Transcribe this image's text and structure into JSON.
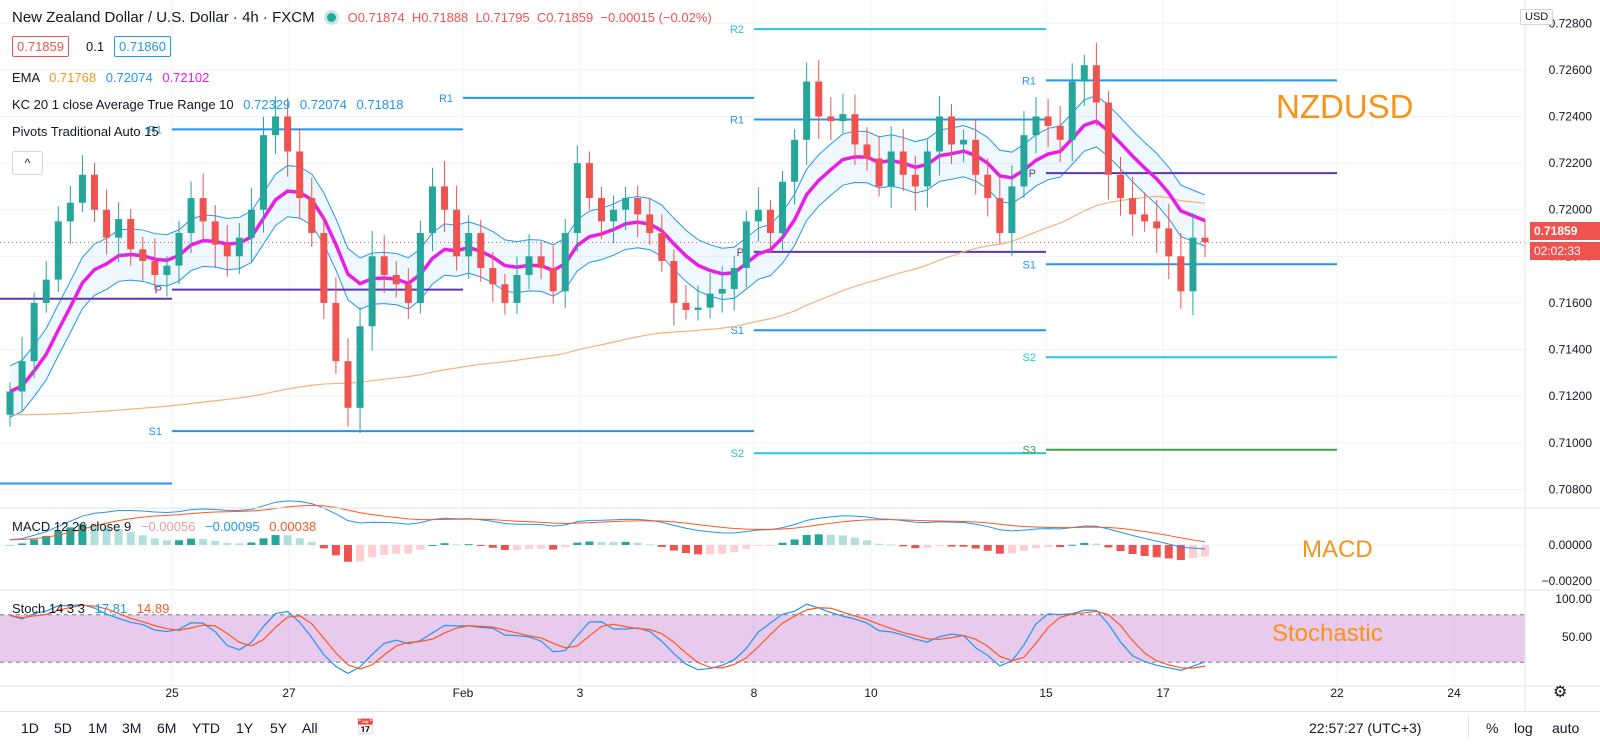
{
  "header": {
    "symbol_title": "New Zealand Dollar / U.S. Dollar · 4h · FXCM",
    "ohlc": {
      "open": "O0.71874",
      "high": "H0.71888",
      "low": "L0.71795",
      "close": "C0.71859",
      "change": "−0.00015 (−0.02%)"
    },
    "sell_price": "0.71859",
    "spread": "0.1",
    "buy_price": "0.71860",
    "currency": "USD"
  },
  "indicators": {
    "ema": {
      "label": "EMA",
      "v1": "0.71768",
      "v2": "0.72074",
      "v3": "0.72102",
      "c1": "#f7931a",
      "c2": "#2196f3",
      "c3": "#e91ee6"
    },
    "kc": {
      "label": "KC 20 1 close Average True Range 10",
      "v1": "0.72329",
      "v2": "0.72074",
      "v3": "0.71818"
    },
    "pivots": {
      "label": "Pivots Traditional Auto 15"
    },
    "collapse_icon": "^",
    "macd": {
      "label": "MACD 12 26 close 9",
      "v1": "−0.00056",
      "v2": "−0.00095",
      "v3": "0.00038"
    },
    "stoch": {
      "label": "Stoch 14 3 3",
      "v1": "17.81",
      "v2": "14.89"
    }
  },
  "annotations": {
    "main": "NZDUSD",
    "macd": "MACD",
    "stoch": "Stochastic"
  },
  "price_axis": {
    "current_price": "0.71859",
    "countdown": "02:02:33"
  },
  "bottom_bar": {
    "timeframes": [
      "1D",
      "5D",
      "1M",
      "3M",
      "6M",
      "YTD",
      "1Y",
      "5Y",
      "All"
    ],
    "clock": "22:57:27 (UTC+3)",
    "percent": "%",
    "log": "log",
    "auto": "auto"
  },
  "colors": {
    "up": "#26a69a",
    "down": "#ef5350",
    "ema_fast": "#e91ee6",
    "ema_slow": "#f7b07a",
    "kc_band": "#2196f3",
    "pivot_blue": "#2196f3",
    "pivot_purple": "#5e35b1",
    "pivot_teal": "#26c6da",
    "pivot_green": "#43a047",
    "stoch_k": "#2196f3",
    "stoch_d": "#ff5722",
    "stoch_bg": "#e1bee7",
    "accent_label": "#f7931a"
  },
  "chart_data": {
    "type": "candlestick",
    "timeframe": "4h",
    "x_ticks": [
      "25",
      "27",
      "Feb",
      "3",
      "8",
      "10",
      "15",
      "17",
      "22",
      "24"
    ],
    "y_ticks": [
      "0.72800",
      "0.72600",
      "0.72400",
      "0.72200",
      "0.72000",
      "0.71800",
      "0.71600",
      "0.71400",
      "0.71200",
      "0.71000",
      "0.70800"
    ],
    "ylim": [
      0.7072,
      0.729
    ],
    "close_series": [
      0.7122,
      0.7135,
      0.716,
      0.717,
      0.7195,
      0.7203,
      0.7215,
      0.72,
      0.7188,
      0.7196,
      0.7183,
      0.7178,
      0.7172,
      0.7176,
      0.719,
      0.7205,
      0.7195,
      0.7185,
      0.718,
      0.7188,
      0.72,
      0.7232,
      0.724,
      0.7225,
      0.7205,
      0.719,
      0.716,
      0.7135,
      0.7115,
      0.715,
      0.718,
      0.7172,
      0.7168,
      0.716,
      0.719,
      0.721,
      0.72,
      0.718,
      0.719,
      0.7175,
      0.7168,
      0.716,
      0.7172,
      0.718,
      0.7175,
      0.7165,
      0.719,
      0.722,
      0.7205,
      0.7195,
      0.72,
      0.7205,
      0.7198,
      0.719,
      0.7178,
      0.716,
      0.7157,
      0.7158,
      0.7164,
      0.7166,
      0.7175,
      0.7195,
      0.72,
      0.719,
      0.7212,
      0.723,
      0.7255,
      0.724,
      0.7238,
      0.7241,
      0.7228,
      0.7222,
      0.721,
      0.7225,
      0.7215,
      0.721,
      0.7225,
      0.724,
      0.7228,
      0.723,
      0.7215,
      0.7205,
      0.719,
      0.721,
      0.7232,
      0.724,
      0.7236,
      0.723,
      0.7255,
      0.7262,
      0.7246,
      0.7215,
      0.7205,
      0.7198,
      0.7195,
      0.7192,
      0.718,
      0.7165,
      0.7188,
      0.7186
    ],
    "pivots": [
      {
        "label": "R1",
        "value": 0.7248
      },
      {
        "label": "R1",
        "value": 0.72345
      },
      {
        "label": "R1",
        "value": 0.72555
      },
      {
        "label": "R1",
        "value": 0.72387
      },
      {
        "label": "R2",
        "value": 0.72775
      },
      {
        "label": "P",
        "value": 0.71618
      },
      {
        "label": "P",
        "value": 0.71657
      },
      {
        "label": "P",
        "value": 0.71819
      },
      {
        "label": "S1",
        "value": 0.7105
      },
      {
        "label": "S1",
        "value": 0.71483
      },
      {
        "label": "S1",
        "value": 0.71766
      },
      {
        "label": "S2",
        "value": 0.70955
      },
      {
        "label": "S2",
        "value": 0.71367
      },
      {
        "label": "S3",
        "value": 0.7097
      }
    ],
    "ema_fast_last": 0.72102,
    "ema_slow_last": 0.71768,
    "macd": {
      "ylim": [
        -0.0026,
        0.002
      ],
      "y_ticks": [
        "0.00000",
        "−0.00200"
      ]
    },
    "stoch": {
      "ylim": [
        0,
        100
      ],
      "y_ticks": [
        "100.00",
        "50.00"
      ],
      "upper": 80,
      "lower": 20
    }
  }
}
